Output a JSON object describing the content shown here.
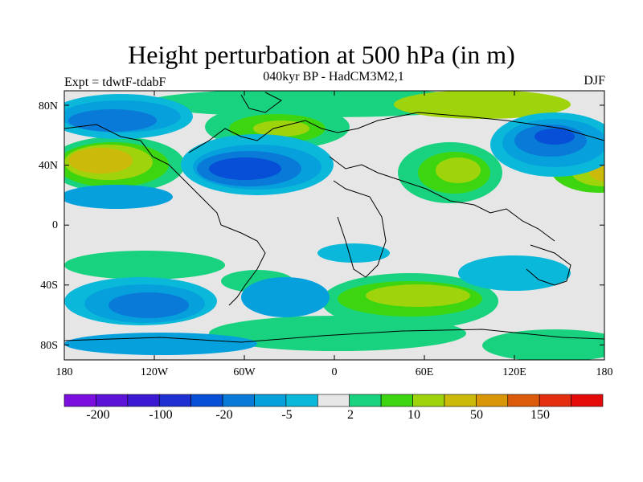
{
  "title": "Height perturbation at 500 hPa (in m)",
  "subtitle": "040kyr BP - HadCM3M2,1",
  "experiment": "Expt = tdwtF-tdabF",
  "season": "DJF",
  "map": {
    "lat_labels": [
      "80N",
      "40N",
      "0",
      "40S",
      "80S"
    ],
    "lon_labels": [
      "180",
      "120W",
      "60W",
      "0",
      "60E",
      "120E",
      "180"
    ],
    "background_color": "#e6e6e6"
  },
  "colorbar": {
    "colors": [
      "#7b0fe0",
      "#5d12d8",
      "#3b19d3",
      "#1f2fd1",
      "#064fd6",
      "#0a7ad8",
      "#06a1dd",
      "#0ab8d9",
      "#e6e6e6",
      "#18d27f",
      "#3dd50f",
      "#9fd40d",
      "#cbba0a",
      "#d99708",
      "#db5b0a",
      "#e52d10",
      "#e40a0a"
    ],
    "labels": [
      "-200",
      "-100",
      "-20",
      "-5",
      "2",
      "10",
      "50",
      "150"
    ]
  }
}
